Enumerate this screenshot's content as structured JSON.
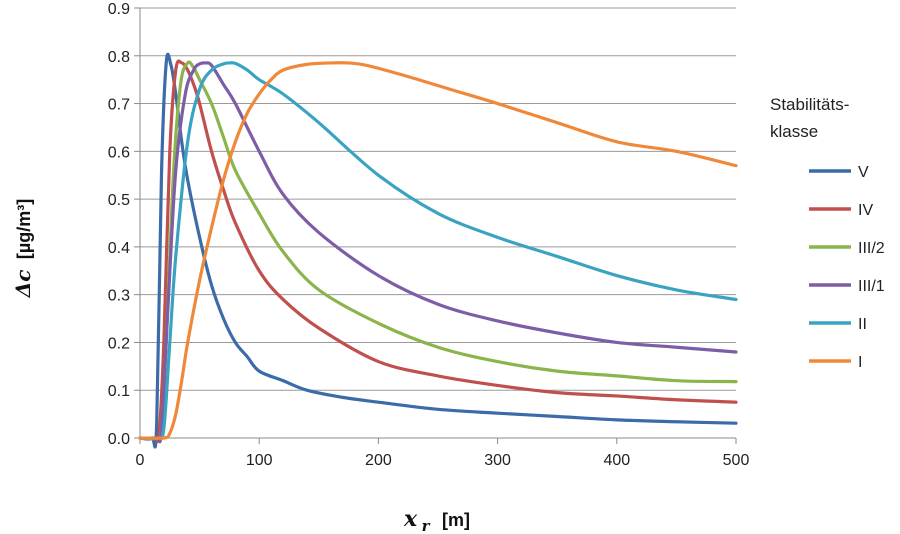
{
  "chart_data": {
    "type": "line",
    "title": "",
    "xlabel_symbol": "x",
    "xlabel_subscript": "r",
    "xlabel_unit": "[m]",
    "ylabel_symbol": "Δc",
    "ylabel_unit": "[µg/m³]",
    "xlim": [
      0,
      500
    ],
    "ylim": [
      0,
      0.9
    ],
    "x_ticks": [
      0,
      100,
      200,
      300,
      400,
      500
    ],
    "x_tick_labels": [
      "0",
      "100",
      "200",
      "300",
      "400",
      "500"
    ],
    "y_ticks": [
      0,
      0.1,
      0.2,
      0.3,
      0.4,
      0.5,
      0.6,
      0.7,
      0.8,
      0.9
    ],
    "y_tick_labels": [
      "0.0",
      "0.1",
      "0.2",
      "0.3",
      "0.4",
      "0.5",
      "0.6",
      "0.7",
      "0.8",
      "0.9"
    ],
    "grid": "horizontal",
    "legend": {
      "title_line1": "Stabilitäts-",
      "title_line2": "klasse",
      "position": "right"
    },
    "series": [
      {
        "name": "V",
        "color": "#3B6BA8",
        "x": [
          0,
          10,
          14,
          18,
          22,
          26,
          30,
          35,
          40,
          50,
          60,
          70,
          80,
          90,
          100,
          120,
          140,
          170,
          200,
          250,
          300,
          350,
          400,
          450,
          500
        ],
        "y": [
          0,
          0,
          0.03,
          0.55,
          0.785,
          0.78,
          0.72,
          0.62,
          0.54,
          0.42,
          0.32,
          0.25,
          0.2,
          0.17,
          0.14,
          0.12,
          0.1,
          0.085,
          0.075,
          0.06,
          0.052,
          0.045,
          0.038,
          0.034,
          0.031
        ]
      },
      {
        "name": "IV",
        "color": "#C0504D",
        "x": [
          0,
          12,
          16,
          20,
          25,
          30,
          35,
          40,
          45,
          50,
          60,
          70,
          80,
          100,
          120,
          150,
          200,
          250,
          300,
          350,
          400,
          450,
          500
        ],
        "y": [
          0,
          0,
          0.01,
          0.2,
          0.6,
          0.77,
          0.785,
          0.77,
          0.74,
          0.7,
          0.6,
          0.52,
          0.45,
          0.35,
          0.29,
          0.23,
          0.16,
          0.13,
          0.11,
          0.095,
          0.088,
          0.08,
          0.075
        ]
      },
      {
        "name": "III/2",
        "color": "#8CB44D",
        "x": [
          0,
          14,
          18,
          22,
          28,
          34,
          40,
          45,
          50,
          60,
          70,
          80,
          100,
          120,
          150,
          200,
          250,
          300,
          350,
          400,
          450,
          500
        ],
        "y": [
          0,
          0,
          0.02,
          0.2,
          0.55,
          0.74,
          0.785,
          0.775,
          0.75,
          0.7,
          0.63,
          0.56,
          0.47,
          0.39,
          0.31,
          0.24,
          0.19,
          0.16,
          0.14,
          0.13,
          0.12,
          0.118
        ]
      },
      {
        "name": "III/1",
        "color": "#7D5EA6",
        "x": [
          0,
          14,
          18,
          24,
          30,
          38,
          45,
          50,
          55,
          60,
          70,
          80,
          100,
          120,
          150,
          200,
          250,
          300,
          350,
          400,
          450,
          500
        ],
        "y": [
          0,
          0,
          0.02,
          0.3,
          0.56,
          0.72,
          0.77,
          0.783,
          0.785,
          0.78,
          0.74,
          0.7,
          0.6,
          0.51,
          0.43,
          0.34,
          0.28,
          0.245,
          0.22,
          0.2,
          0.19,
          0.18
        ]
      },
      {
        "name": "II",
        "color": "#3AA3C2",
        "x": [
          0,
          15,
          20,
          25,
          30,
          40,
          50,
          60,
          70,
          75,
          80,
          90,
          100,
          120,
          150,
          200,
          250,
          300,
          350,
          400,
          450,
          500
        ],
        "y": [
          0,
          0,
          0.02,
          0.2,
          0.38,
          0.62,
          0.73,
          0.77,
          0.783,
          0.785,
          0.784,
          0.77,
          0.75,
          0.72,
          0.66,
          0.55,
          0.47,
          0.42,
          0.38,
          0.34,
          0.31,
          0.29
        ]
      },
      {
        "name": "I",
        "color": "#F0883A",
        "x": [
          0,
          20,
          25,
          30,
          35,
          40,
          50,
          60,
          70,
          80,
          90,
          100,
          110,
          120,
          140,
          160,
          175,
          190,
          220,
          260,
          300,
          350,
          400,
          450,
          500
        ],
        "y": [
          0,
          0,
          0.01,
          0.05,
          0.12,
          0.2,
          0.33,
          0.44,
          0.54,
          0.62,
          0.68,
          0.72,
          0.75,
          0.77,
          0.782,
          0.785,
          0.785,
          0.78,
          0.76,
          0.73,
          0.7,
          0.66,
          0.62,
          0.6,
          0.57
        ]
      }
    ]
  }
}
